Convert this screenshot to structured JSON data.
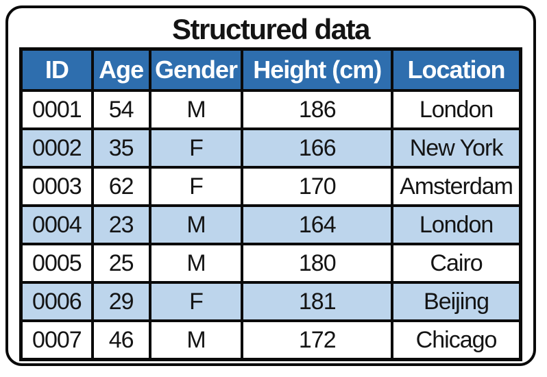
{
  "title": "Structured data",
  "table": {
    "headers": [
      "ID",
      "Age",
      "Gender",
      "Height (cm)",
      "Location"
    ],
    "column_keys": [
      "id",
      "age",
      "gender",
      "height-cm",
      "location"
    ],
    "rows": [
      [
        "0001",
        "54",
        "M",
        "186",
        "London"
      ],
      [
        "0002",
        "35",
        "F",
        "166",
        "New York"
      ],
      [
        "0003",
        "62",
        "F",
        "170",
        "Amsterdam"
      ],
      [
        "0004",
        "23",
        "M",
        "164",
        "London"
      ],
      [
        "0005",
        "25",
        "M",
        "180",
        "Cairo"
      ],
      [
        "0006",
        "29",
        "F",
        "181",
        "Beijing"
      ],
      [
        "0007",
        "46",
        "M",
        "172",
        "Chicago"
      ]
    ]
  },
  "colors": {
    "header_bg": "#2e6eae",
    "header_text": "#ffffff",
    "alt_row_bg": "#bdd5ec",
    "row_bg": "#ffffff",
    "border": "#0a0a0a",
    "text": "#141414"
  },
  "chart_data": {
    "type": "table",
    "title": "Structured data",
    "columns": [
      "ID",
      "Age",
      "Gender",
      "Height (cm)",
      "Location"
    ],
    "rows": [
      {
        "ID": "0001",
        "Age": 54,
        "Gender": "M",
        "Height (cm)": 186,
        "Location": "London"
      },
      {
        "ID": "0002",
        "Age": 35,
        "Gender": "F",
        "Height (cm)": 166,
        "Location": "New York"
      },
      {
        "ID": "0003",
        "Age": 62,
        "Gender": "F",
        "Height (cm)": 170,
        "Location": "Amsterdam"
      },
      {
        "ID": "0004",
        "Age": 23,
        "Gender": "M",
        "Height (cm)": 164,
        "Location": "London"
      },
      {
        "ID": "0005",
        "Age": 25,
        "Gender": "M",
        "Height (cm)": 180,
        "Location": "Cairo"
      },
      {
        "ID": "0006",
        "Age": 29,
        "Gender": "F",
        "Height (cm)": 181,
        "Location": "Beijing"
      },
      {
        "ID": "0007",
        "Age": 46,
        "Gender": "M",
        "Height (cm)": 172,
        "Location": "Chicago"
      }
    ],
    "layout_hints": {
      "header_style": "dark-blue background, white bold text",
      "row_striping": "odd data rows white, even data rows light blue",
      "grid": "thick black borders, rounded outer frame"
    }
  }
}
